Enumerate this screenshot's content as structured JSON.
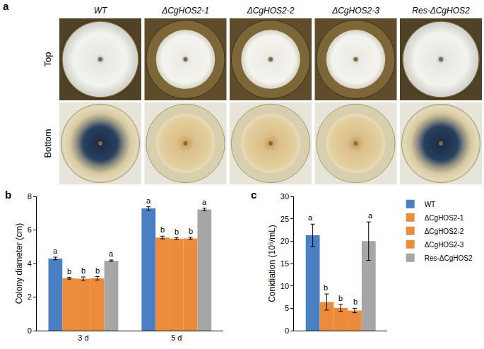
{
  "plate_panel": {
    "title": "a",
    "columns": [
      "WT",
      "ΔCgHOS2-1",
      "ΔCgHOS2-2",
      "ΔCgHOS2-3",
      "Res-ΔCgHOS2"
    ],
    "rows": [
      "Top",
      "Bottom"
    ]
  },
  "chart_data": [
    {
      "type": "bar",
      "title": "b",
      "y_label": "Colony diameter (cm)",
      "categories": [
        "3 d",
        "5 d"
      ],
      "series": [
        {
          "color": "#4a7fc1",
          "values": [
            4.3,
            7.28
          ],
          "errors": [
            0.08,
            0.1
          ],
          "letters": [
            "a",
            "a"
          ]
        },
        {
          "color": "#ed8b3d",
          "values": [
            3.12,
            5.55
          ],
          "errors": [
            0.05,
            0.08
          ],
          "letters": [
            "b",
            "b"
          ]
        },
        {
          "color": "#ed8b3d",
          "values": [
            3.1,
            5.48
          ],
          "errors": [
            0.1,
            0.05
          ],
          "letters": [
            "b",
            "b"
          ]
        },
        {
          "color": "#ed8b3d",
          "values": [
            3.12,
            5.5
          ],
          "errors": [
            0.1,
            0.05
          ],
          "letters": [
            "b",
            "b"
          ]
        },
        {
          "color": "#a6a6a6",
          "values": [
            4.17,
            7.22
          ],
          "errors": [
            0.04,
            0.08
          ],
          "letters": [
            "a",
            "a"
          ]
        }
      ],
      "ylim": [
        0,
        8
      ],
      "yticks": [
        0,
        2,
        4,
        6,
        8
      ],
      "grid": false
    },
    {
      "type": "bar",
      "title": "c",
      "y_label": "Conidiation (10⁶/mL)",
      "categories": [
        null
      ],
      "series": [
        {
          "name": "WT",
          "color": "#4a7fc1",
          "values": [
            21.3
          ],
          "errors": [
            2.5
          ],
          "letters": [
            "a"
          ]
        },
        {
          "name": "ΔCgHOS2-1",
          "color": "#ed8b3d",
          "values": [
            6.4
          ],
          "errors": [
            1.8
          ],
          "letters": [
            "b"
          ]
        },
        {
          "name": "ΔCgHOS2-2",
          "color": "#ed8b3d",
          "values": [
            5.1
          ],
          "errors": [
            0.8
          ],
          "letters": [
            "b"
          ]
        },
        {
          "name": "ΔCgHOS2-3",
          "color": "#ed8b3d",
          "values": [
            4.5
          ],
          "errors": [
            0.5
          ],
          "letters": [
            "b"
          ]
        },
        {
          "name": "Res-ΔCgHOS2",
          "color": "#a6a6a6",
          "values": [
            20.0
          ],
          "errors": [
            4.3
          ],
          "letters": [
            "a"
          ]
        }
      ],
      "ylim": [
        0,
        30
      ],
      "yticks": [
        0,
        5,
        10,
        15,
        20,
        25,
        30
      ],
      "grid": false,
      "legend": "right",
      "tick_labels": "y"
    }
  ]
}
